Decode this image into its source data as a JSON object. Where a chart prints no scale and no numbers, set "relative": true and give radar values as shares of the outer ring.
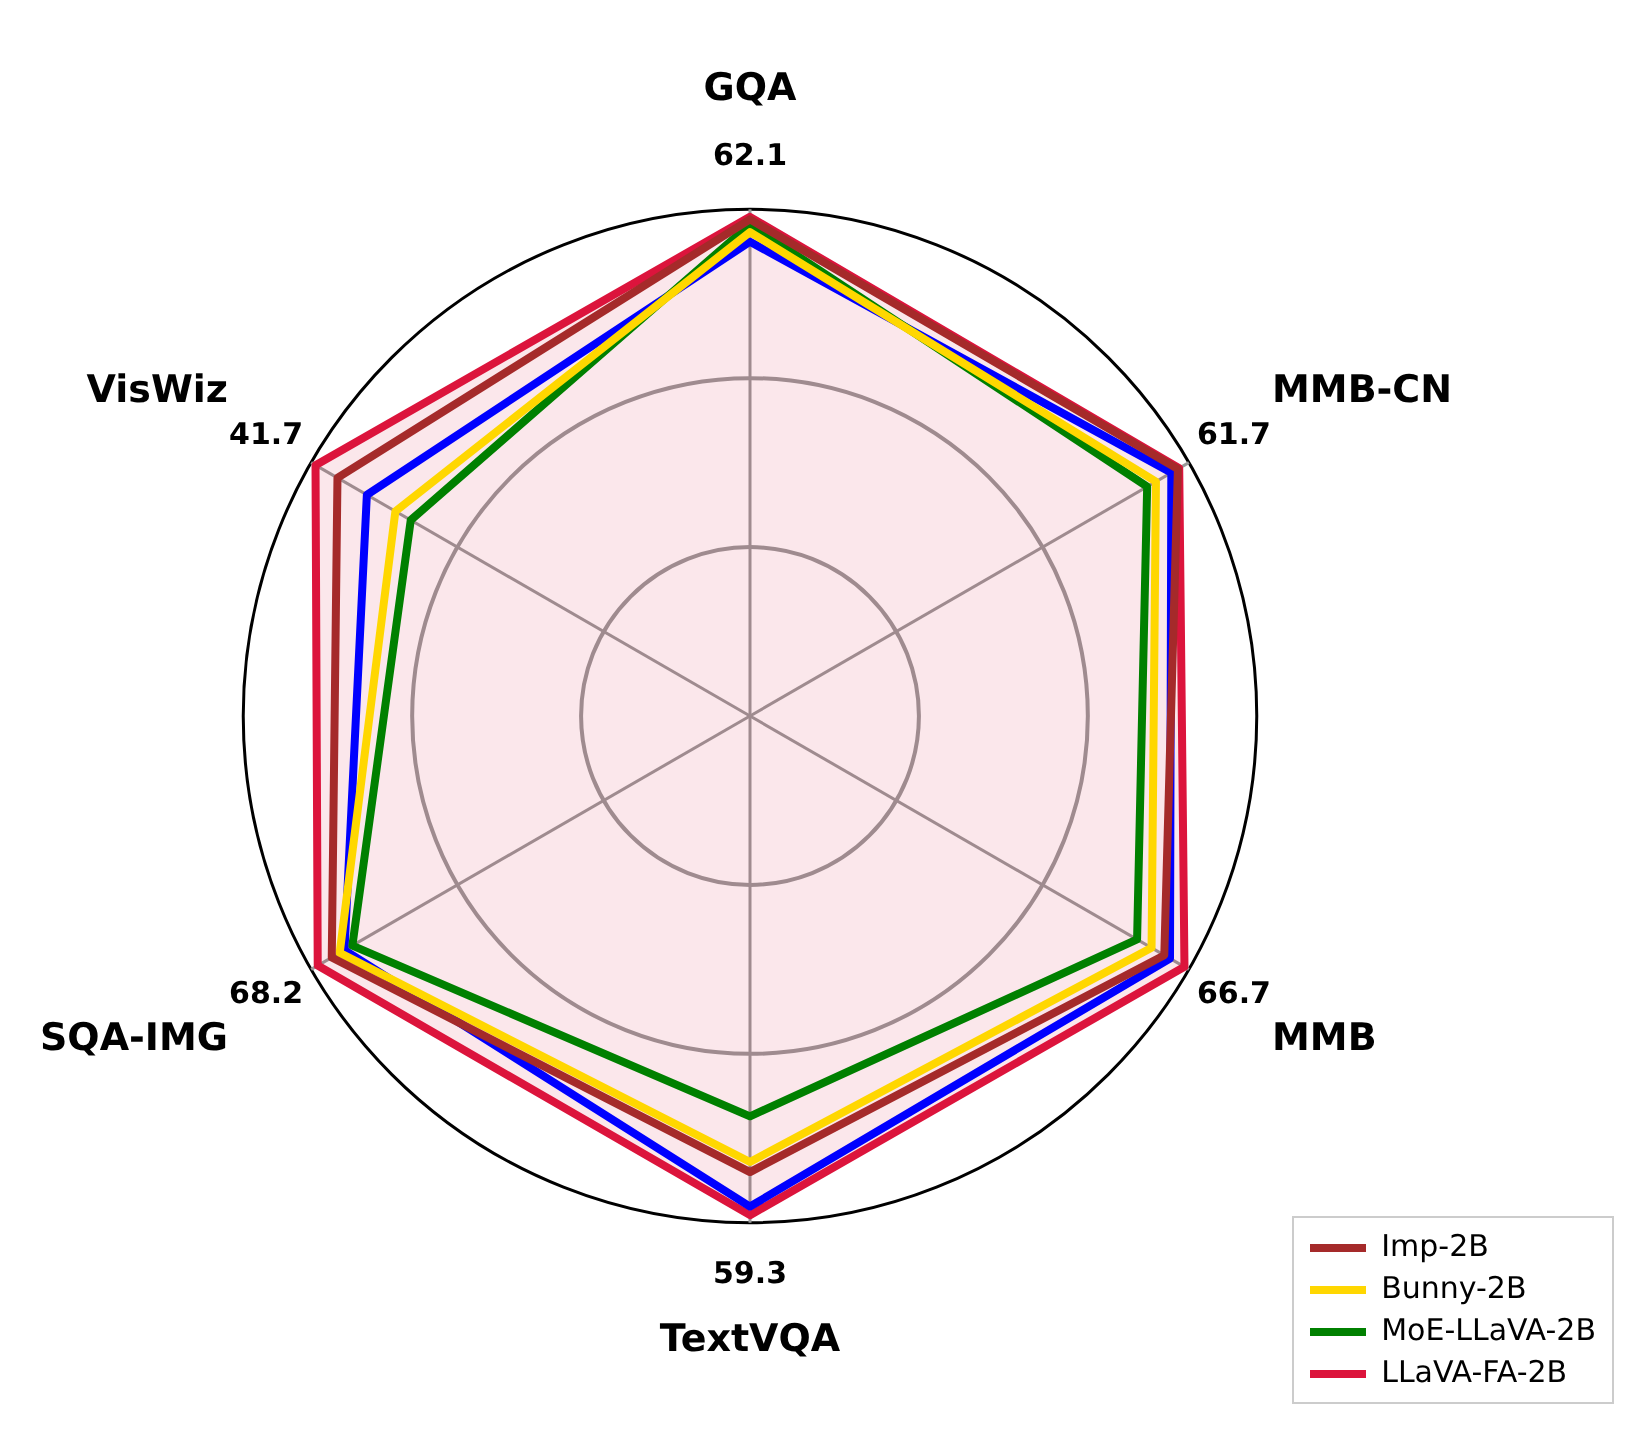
{
  "chart_data": {
    "type": "radar",
    "relative": true,
    "grid": true,
    "legend": "bottom right",
    "categories": [
      "GQA",
      "MMB-CN",
      "MMB",
      "TextVQA",
      "SQA-IMG",
      "VisWiz"
    ],
    "series": [
      {
        "name": "Imp-2B",
        "color": "#a52a2a",
        "values": [
          0.98,
          0.975,
          0.944,
          0.9,
          0.953,
          0.94
        ]
      },
      {
        "name": "Bunny-2B",
        "color": "#ffd700",
        "values": [
          0.955,
          0.925,
          0.915,
          0.88,
          0.935,
          0.808
        ]
      },
      {
        "name": "MoE-LLaVA-2B",
        "color": "#008000",
        "values": [
          0.97,
          0.905,
          0.882,
          0.79,
          0.906,
          0.773
        ]
      },
      {
        "color": "#0000ff",
        "values": [
          0.936,
          0.96,
          0.957,
          0.968,
          0.924,
          0.873
        ]
      },
      {
        "name": "LLaVA-FA-2B",
        "color": "#dc143c",
        "values": [
          0.985,
          0.978,
          0.99,
          0.985,
          0.985,
          0.99
        ]
      }
    ],
    "annotations": [
      {
        "text": "62.1",
        "x": "GQA"
      },
      {
        "text": "61.7",
        "x": "MMB-CN"
      },
      {
        "text": "66.7",
        "x": "MMB"
      },
      {
        "text": "59.3",
        "x": "TextVQA"
      },
      {
        "text": "68.2",
        "x": "SQA-IMG"
      },
      {
        "text": "41.7",
        "x": "VisWiz"
      }
    ]
  }
}
